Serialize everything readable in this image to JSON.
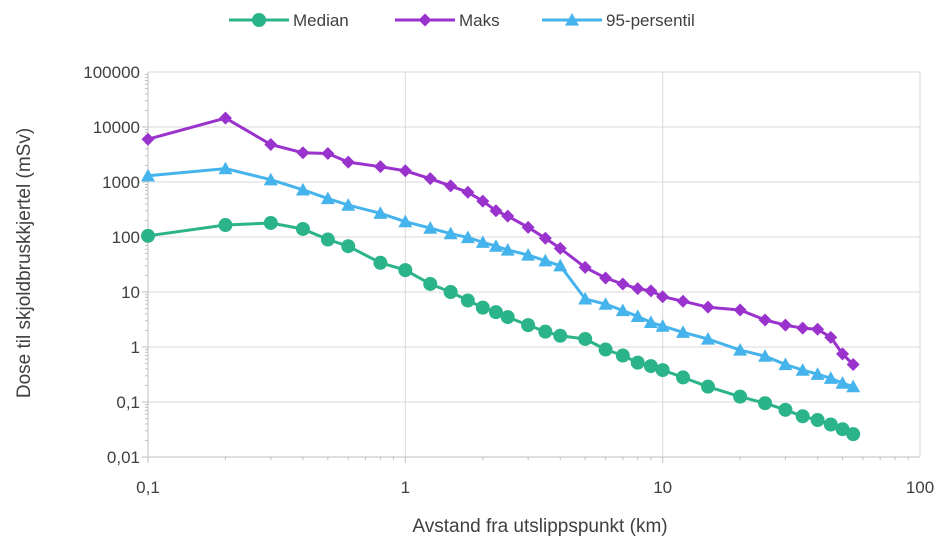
{
  "chart_data": {
    "type": "line",
    "xscale": "log",
    "yscale": "log",
    "xlabel": "Avstand fra utslippspunkt (km)",
    "ylabel": "Dose til skjoldbruskkjertel (mSv)",
    "xlim": [
      0.1,
      100
    ],
    "ylim": [
      0.01,
      100000
    ],
    "x_ticks": [
      {
        "value": 0.1,
        "label": "0,1"
      },
      {
        "value": 1,
        "label": "1"
      },
      {
        "value": 10,
        "label": "10"
      },
      {
        "value": 100,
        "label": "100"
      }
    ],
    "y_ticks": [
      {
        "value": 0.01,
        "label": "0,01"
      },
      {
        "value": 0.1,
        "label": "0,1"
      },
      {
        "value": 1,
        "label": "1"
      },
      {
        "value": 10,
        "label": "10"
      },
      {
        "value": 100,
        "label": "100"
      },
      {
        "value": 1000,
        "label": "1000"
      },
      {
        "value": 10000,
        "label": "10000"
      },
      {
        "value": 100000,
        "label": "100000"
      }
    ],
    "grid": true,
    "legend_position": "top",
    "series": [
      {
        "name": "Median",
        "color": "#2bb38a",
        "marker": "circle",
        "points": [
          [
            0.1,
            105
          ],
          [
            0.2,
            165
          ],
          [
            0.3,
            180
          ],
          [
            0.4,
            140
          ],
          [
            0.5,
            90
          ],
          [
            0.6,
            68
          ],
          [
            0.8,
            34
          ],
          [
            1.0,
            25
          ],
          [
            1.25,
            14
          ],
          [
            1.5,
            10
          ],
          [
            1.75,
            7
          ],
          [
            2.0,
            5.2
          ],
          [
            2.25,
            4.3
          ],
          [
            2.5,
            3.5
          ],
          [
            3.0,
            2.5
          ],
          [
            3.5,
            1.9
          ],
          [
            4.0,
            1.6
          ],
          [
            5.0,
            1.4
          ],
          [
            6.0,
            0.9
          ],
          [
            7.0,
            0.7
          ],
          [
            8.0,
            0.52
          ],
          [
            9.0,
            0.45
          ],
          [
            10.0,
            0.38
          ],
          [
            12.0,
            0.28
          ],
          [
            15.0,
            0.19
          ],
          [
            20.0,
            0.125
          ],
          [
            25.0,
            0.095
          ],
          [
            30.0,
            0.072
          ],
          [
            35.0,
            0.055
          ],
          [
            40.0,
            0.047
          ],
          [
            45.0,
            0.039
          ],
          [
            50.0,
            0.032
          ],
          [
            55.0,
            0.026
          ]
        ]
      },
      {
        "name": "Maks",
        "color": "#9a32cd",
        "marker": "diamond",
        "points": [
          [
            0.1,
            6000
          ],
          [
            0.2,
            14500
          ],
          [
            0.3,
            4800
          ],
          [
            0.4,
            3400
          ],
          [
            0.5,
            3300
          ],
          [
            0.6,
            2300
          ],
          [
            0.8,
            1900
          ],
          [
            1.0,
            1600
          ],
          [
            1.25,
            1150
          ],
          [
            1.5,
            850
          ],
          [
            1.75,
            650
          ],
          [
            2.0,
            450
          ],
          [
            2.25,
            300
          ],
          [
            2.5,
            240
          ],
          [
            3.0,
            150
          ],
          [
            3.5,
            95
          ],
          [
            4.0,
            62
          ],
          [
            5.0,
            28
          ],
          [
            6.0,
            18
          ],
          [
            7.0,
            14
          ],
          [
            8.0,
            11.5
          ],
          [
            9.0,
            10.5
          ],
          [
            10.0,
            8.2
          ],
          [
            12.0,
            6.8
          ],
          [
            15.0,
            5.3
          ],
          [
            20.0,
            4.7
          ],
          [
            25.0,
            3.1
          ],
          [
            30.0,
            2.5
          ],
          [
            35.0,
            2.2
          ],
          [
            40.0,
            2.1
          ],
          [
            45.0,
            1.5
          ],
          [
            50.0,
            0.75
          ],
          [
            55.0,
            0.48
          ]
        ]
      },
      {
        "name": "95-persentil",
        "color": "#46b4ec",
        "marker": "triangle",
        "points": [
          [
            0.1,
            1300
          ],
          [
            0.2,
            1750
          ],
          [
            0.3,
            1100
          ],
          [
            0.4,
            720
          ],
          [
            0.5,
            500
          ],
          [
            0.6,
            380
          ],
          [
            0.8,
            270
          ],
          [
            1.0,
            190
          ],
          [
            1.25,
            145
          ],
          [
            1.5,
            115
          ],
          [
            1.75,
            98
          ],
          [
            2.0,
            80
          ],
          [
            2.25,
            68
          ],
          [
            2.5,
            58
          ],
          [
            3.0,
            47
          ],
          [
            3.5,
            37
          ],
          [
            4.0,
            30
          ],
          [
            5.0,
            7.5
          ],
          [
            6.0,
            6.0
          ],
          [
            7.0,
            4.6
          ],
          [
            8.0,
            3.6
          ],
          [
            9.0,
            2.8
          ],
          [
            10.0,
            2.4
          ],
          [
            12.0,
            1.85
          ],
          [
            15.0,
            1.4
          ],
          [
            20.0,
            0.88
          ],
          [
            25.0,
            0.68
          ],
          [
            30.0,
            0.48
          ],
          [
            35.0,
            0.38
          ],
          [
            40.0,
            0.32
          ],
          [
            45.0,
            0.27
          ],
          [
            50.0,
            0.22
          ],
          [
            55.0,
            0.19
          ]
        ]
      }
    ]
  }
}
